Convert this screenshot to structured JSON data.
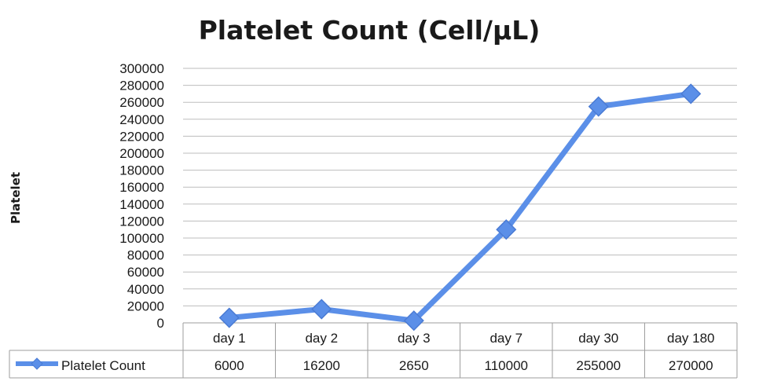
{
  "chart_data": {
    "type": "line",
    "title": "Platelet Count (Cell/µL)",
    "ylabel": "Platelet",
    "xlabel": "",
    "categories": [
      "day 1",
      "day 2",
      "day 3",
      "day 7",
      "day 30",
      "day 180"
    ],
    "series": [
      {
        "name": "Platelet Count",
        "values": [
          6000,
          16200,
          2650,
          110000,
          255000,
          270000
        ],
        "color": "#5b8fe8"
      }
    ],
    "ylim": [
      0,
      300000
    ],
    "yticks": [
      "0",
      "20000",
      "40000",
      "60000",
      "80000",
      "100000",
      "120000",
      "140000",
      "160000",
      "180000",
      "200000",
      "220000",
      "240000",
      "260000",
      "280000",
      "300000"
    ],
    "table_values": [
      "6000",
      "16200",
      "2650",
      "110000",
      "255000",
      "270000"
    ],
    "grid": true,
    "legend": "data-table"
  }
}
